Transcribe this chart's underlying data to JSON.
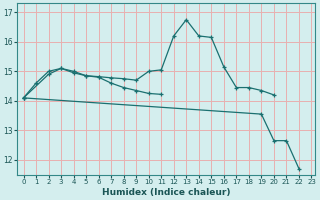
{
  "xlabel": "Humidex (Indice chaleur)",
  "background_color": "#d4eeee",
  "grid_color": "#e8b0b0",
  "line_color": "#1a7070",
  "xlim_min": -0.5,
  "xlim_max": 23.3,
  "ylim_min": 11.5,
  "ylim_max": 17.3,
  "xticks": [
    0,
    1,
    2,
    3,
    4,
    5,
    6,
    7,
    8,
    9,
    10,
    11,
    12,
    13,
    14,
    15,
    16,
    17,
    18,
    19,
    20,
    21,
    22,
    23
  ],
  "yticks": [
    12,
    13,
    14,
    15,
    16,
    17
  ],
  "series": [
    {
      "x": [
        0,
        1,
        2,
        3,
        4,
        5,
        6,
        7,
        8,
        9,
        10,
        11,
        12,
        13,
        14,
        15,
        16,
        17,
        18,
        19,
        20
      ],
      "y": [
        14.1,
        14.6,
        15.0,
        15.1,
        15.0,
        14.85,
        14.82,
        14.78,
        14.75,
        14.7,
        15.0,
        15.05,
        16.2,
        16.75,
        16.2,
        16.15,
        15.15,
        14.45,
        14.45,
        14.35,
        14.2
      ]
    },
    {
      "x": [
        0,
        2,
        3,
        4,
        5,
        6,
        7,
        8,
        9,
        10,
        11
      ],
      "y": [
        14.1,
        14.9,
        15.1,
        14.95,
        14.85,
        14.8,
        14.6,
        14.45,
        14.35,
        14.25,
        14.22
      ]
    },
    {
      "x": [
        0,
        19,
        20,
        21,
        22
      ],
      "y": [
        14.1,
        13.55,
        12.65,
        12.65,
        11.7
      ]
    }
  ]
}
